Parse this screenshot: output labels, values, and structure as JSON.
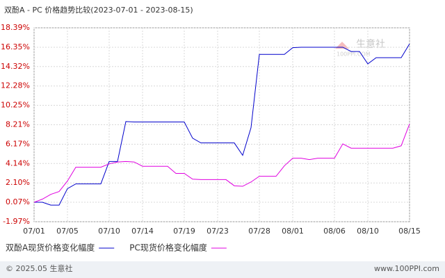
{
  "chart_data": {
    "type": "line",
    "title": "双酚A - PC 价格趋势比较(2023-07-01 - 2023-08-15)",
    "categories": [
      "07/01",
      null,
      null,
      null,
      "07/05",
      null,
      null,
      null,
      null,
      "07/10",
      null,
      null,
      null,
      "07/14",
      null,
      null,
      null,
      null,
      "07/19",
      null,
      null,
      null,
      "07/23",
      null,
      null,
      null,
      null,
      "07/28",
      null,
      null,
      null,
      "08/01",
      null,
      null,
      null,
      null,
      "08/06",
      null,
      null,
      null,
      "08/10",
      null,
      null,
      null,
      null,
      "08/15"
    ],
    "series": [
      {
        "name": "双酚A现货价格变化幅度",
        "color": "#0000cc",
        "values": [
          0.07,
          0.07,
          -0.23,
          -0.23,
          1.5,
          2.0,
          2.0,
          2.0,
          2.0,
          4.35,
          4.35,
          8.55,
          8.5,
          8.5,
          8.5,
          8.5,
          8.5,
          8.5,
          8.5,
          6.8,
          6.3,
          6.3,
          6.3,
          6.3,
          6.3,
          5.0,
          7.9,
          15.6,
          15.6,
          15.6,
          15.6,
          16.3,
          16.35,
          16.35,
          16.35,
          16.35,
          16.35,
          16.35,
          15.9,
          15.9,
          14.6,
          15.25,
          15.25,
          15.25,
          15.25,
          16.7
        ]
      },
      {
        "name": "PC现货价格变化幅度",
        "color": "#e000e0",
        "values": [
          0.07,
          0.4,
          0.9,
          1.2,
          2.3,
          3.75,
          3.75,
          3.75,
          3.75,
          4.1,
          4.3,
          4.35,
          4.3,
          3.85,
          3.85,
          3.85,
          3.85,
          3.1,
          3.1,
          2.5,
          2.45,
          2.45,
          2.45,
          2.45,
          1.8,
          1.75,
          2.2,
          2.8,
          2.8,
          2.8,
          3.9,
          4.7,
          4.7,
          4.55,
          4.7,
          4.7,
          4.7,
          6.2,
          5.75,
          5.75,
          5.75,
          5.75,
          5.75,
          5.75,
          6.0,
          8.3
        ]
      }
    ],
    "ylim": [
      -1.97,
      18.39
    ],
    "yticks": [
      {
        "value": -1.97,
        "label": "-1.97%"
      },
      {
        "value": 0.07,
        "label": "0.07%"
      },
      {
        "value": 2.1,
        "label": "2.10%"
      },
      {
        "value": 4.14,
        "label": "4.14%"
      },
      {
        "value": 6.17,
        "label": "6.17%"
      },
      {
        "value": 8.21,
        "label": "8.21%"
      },
      {
        "value": 10.25,
        "label": "10.25%"
      },
      {
        "value": 12.28,
        "label": "12.28%"
      },
      {
        "value": 14.32,
        "label": "14.32%"
      },
      {
        "value": 16.35,
        "label": "16.35%"
      },
      {
        "value": 18.39,
        "label": "18.39%"
      }
    ],
    "grid": true
  },
  "watermark": {
    "name": "生意社",
    "site": "100PPI.COM"
  },
  "footer": {
    "copyright": "© 2025.05 生意社",
    "site": "www.100PPI.com"
  }
}
